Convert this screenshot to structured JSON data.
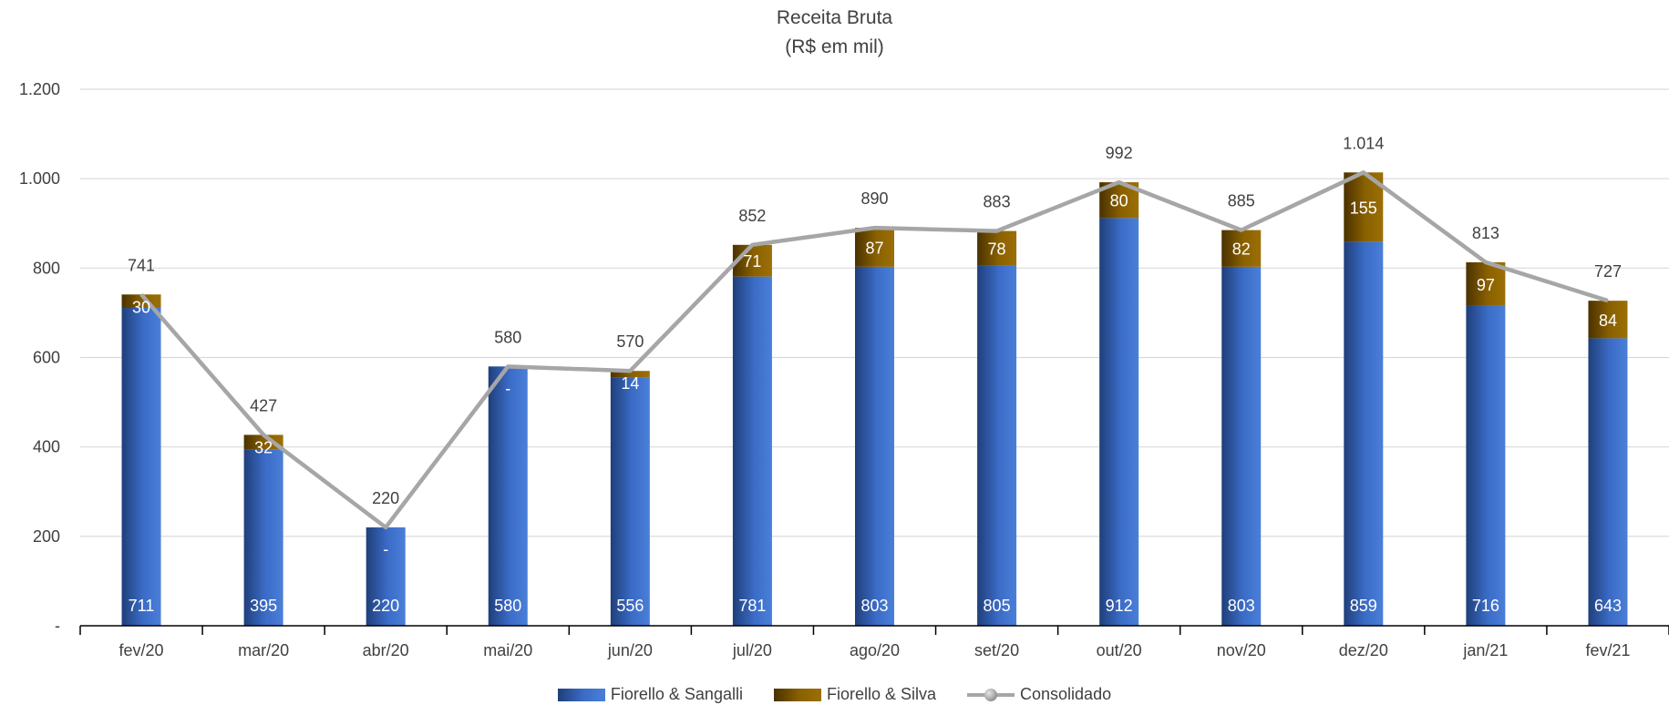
{
  "chart_data": {
    "type": "bar",
    "title": "Receita Bruta",
    "subtitle": "(R$ em mil)",
    "categories": [
      "fev/20",
      "mar/20",
      "abr/20",
      "mai/20",
      "jun/20",
      "jul/20",
      "ago/20",
      "set/20",
      "out/20",
      "nov/20",
      "dez/20",
      "jan/21",
      "fev/21"
    ],
    "series": [
      {
        "name": "Fiorello & Sangalli",
        "kind": "bar",
        "values": [
          711,
          395,
          220,
          580,
          556,
          781,
          803,
          805,
          912,
          803,
          859,
          716,
          643
        ],
        "labels": [
          "711",
          "395",
          "220",
          "580",
          "556",
          "781",
          "803",
          "805",
          "912",
          "803",
          "859",
          "716",
          "643"
        ],
        "color": "#3b6cc7"
      },
      {
        "name": "Fiorello & Silva",
        "kind": "bar",
        "values": [
          30,
          32,
          0,
          0,
          14,
          71,
          87,
          78,
          80,
          82,
          155,
          97,
          84
        ],
        "labels": [
          "30",
          "32",
          "-",
          "-",
          "14",
          "71",
          "87",
          "78",
          "80",
          "82",
          "155",
          "97",
          "84"
        ],
        "color": "#8a6100"
      },
      {
        "name": "Consolidado",
        "kind": "line",
        "values": [
          741,
          427,
          220,
          580,
          570,
          852,
          890,
          883,
          992,
          885,
          1014,
          813,
          727
        ],
        "labels": [
          "741",
          "427",
          "220",
          "580",
          "570",
          "852",
          "890",
          "883",
          "992",
          "885",
          "1.014",
          "813",
          "727"
        ],
        "color": "#a6a6a6"
      }
    ],
    "ylim": [
      0,
      1200
    ],
    "yticks": [
      0,
      200,
      400,
      600,
      800,
      1000,
      1200
    ],
    "ytick_labels": [
      "-",
      "200",
      "400",
      "600",
      "800",
      "1.000",
      "1.200"
    ],
    "grid": true,
    "legend_position": "bottom",
    "stacked": true
  }
}
